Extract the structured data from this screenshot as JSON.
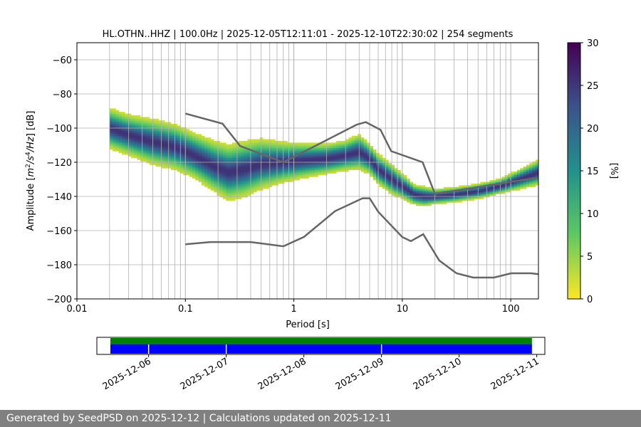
{
  "chart_data": {
    "type": "heatmap",
    "title": "HL.OTHN..HHZ | 100.0Hz | 2025-12-05T12:11:01 - 2025-12-10T22:30:02 | 254 segments",
    "xlabel": "Period [s]",
    "ylabel_parts": [
      "Amplitude [",
      "m",
      "2",
      "/",
      "s",
      "4",
      "/",
      "Hz",
      "] [dB]"
    ],
    "xscale": "log",
    "xlim": [
      0.01,
      180
    ],
    "ylim": [
      -200,
      -50
    ],
    "xticks": [
      {
        "v": 0.01,
        "label": "0.01"
      },
      {
        "v": 0.1,
        "label": "0.1"
      },
      {
        "v": 1,
        "label": "1"
      },
      {
        "v": 10,
        "label": "10"
      },
      {
        "v": 100,
        "label": "100"
      }
    ],
    "yticks": [
      {
        "v": -60,
        "label": "−60"
      },
      {
        "v": -80,
        "label": "−80"
      },
      {
        "v": -100,
        "label": "−100"
      },
      {
        "v": -120,
        "label": "−120"
      },
      {
        "v": -140,
        "label": "−140"
      },
      {
        "v": -160,
        "label": "−160"
      },
      {
        "v": -180,
        "label": "−180"
      },
      {
        "v": -200,
        "label": "−200"
      }
    ],
    "grid": true,
    "psd_mode": {
      "period": [
        0.02,
        0.03,
        0.05,
        0.08,
        0.12,
        0.18,
        0.25,
        0.35,
        0.5,
        0.8,
        1.2,
        2,
        3,
        4,
        5,
        6,
        8,
        10,
        13,
        16,
        20,
        30,
        50,
        80,
        120,
        180
      ],
      "amplitude": [
        -100,
        -104,
        -108,
        -111,
        -116,
        -122,
        -126,
        -124,
        -121,
        -120,
        -119,
        -118,
        -116,
        -114,
        -118,
        -124,
        -130,
        -134,
        -139,
        -140,
        -140,
        -139,
        -137,
        -134,
        -130,
        -126
      ],
      "halfwidth": [
        8,
        8,
        9,
        9,
        9,
        10,
        11,
        11,
        10,
        8,
        7,
        6,
        6,
        7,
        6,
        6,
        6,
        5,
        4,
        4,
        3,
        3,
        3,
        3,
        4,
        5
      ]
    },
    "high_noise_model": {
      "period": [
        0.1,
        0.22,
        0.32,
        0.8,
        3.8,
        4.6,
        6.3,
        7.9,
        15.4,
        20,
        354.8
      ],
      "amplitude": [
        -91.5,
        -97.4,
        -110.5,
        -120,
        -98,
        -96.5,
        -101,
        -113.5,
        -120,
        -138.5,
        -126
      ]
    },
    "low_noise_model": {
      "period": [
        0.1,
        0.17,
        0.4,
        0.8,
        1.24,
        2.4,
        4.3,
        5,
        6,
        10,
        12,
        15.6,
        21.9,
        31.6,
        45,
        70,
        101,
        154,
        180
      ],
      "amplitude": [
        -168,
        -166.7,
        -166.7,
        -169.2,
        -163.7,
        -148.6,
        -141.1,
        -141.1,
        -149,
        -163.8,
        -166.2,
        -162.1,
        -177.5,
        -185,
        -187.5,
        -187.5,
        -185,
        -185,
        -185.5
      ]
    },
    "colorbar": {
      "label": "[%]",
      "range": [
        0,
        30
      ],
      "ticks": [
        {
          "v": 0,
          "label": "0"
        },
        {
          "v": 5,
          "label": "5"
        },
        {
          "v": 10,
          "label": "10"
        },
        {
          "v": 15,
          "label": "15"
        },
        {
          "v": 20,
          "label": "20"
        },
        {
          "v": 25,
          "label": "25"
        },
        {
          "v": 30,
          "label": "30"
        }
      ],
      "colormap": "viridis_r",
      "colors": [
        "#fde725",
        "#5ec962",
        "#21918c",
        "#3b528b",
        "#440154"
      ]
    },
    "data_availability": {
      "date_labels": [
        "2025-12-06",
        "2025-12-07",
        "2025-12-08",
        "2025-12-09",
        "2025-12-10",
        "2025-12-11"
      ],
      "x_start": "2025-12-05T12:11:01",
      "x_end": "2025-12-10T22:30:02",
      "bar_colors": {
        "data": "#0000ff",
        "psd": "#008000"
      },
      "gaps": [
        "2025-12-06T00:00:00",
        "2025-12-07T00:00:00",
        "2025-12-09T00:00:00"
      ]
    }
  },
  "footer": "Generated by SeedPSD on 2025-12-12 | Calculations updated on 2025-12-11",
  "colors": {
    "grid": "#b0b0b0",
    "noise_model": "#666666",
    "footer_bg": "#808080"
  }
}
